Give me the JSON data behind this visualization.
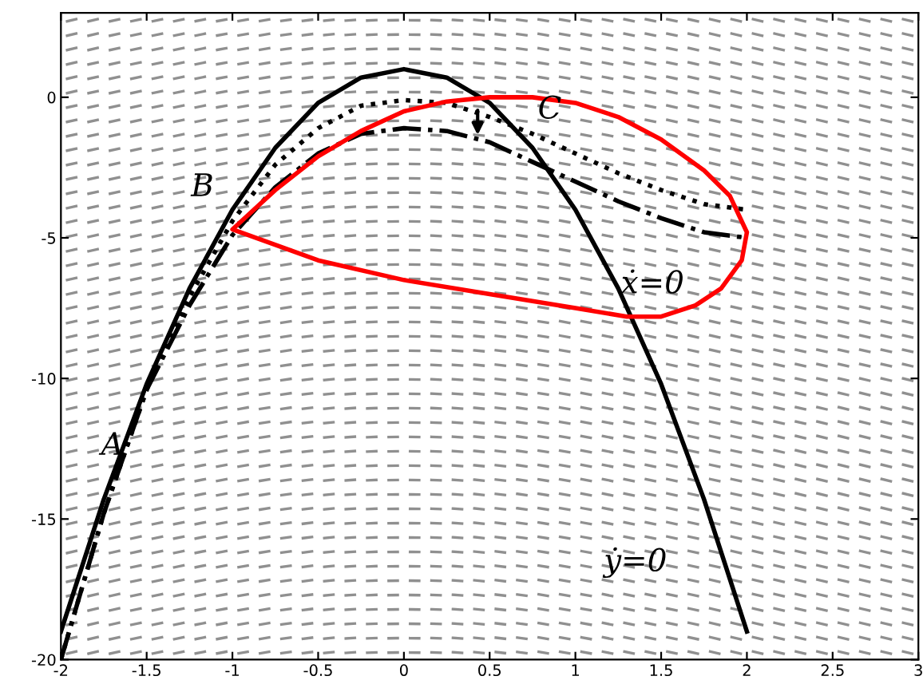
{
  "chart_data": {
    "type": "line",
    "xlim": [
      -2,
      3
    ],
    "ylim": [
      -20,
      3
    ],
    "xticks": [
      -2,
      -1.5,
      -1,
      -0.5,
      0,
      0.5,
      1,
      1.5,
      2,
      2.5,
      3
    ],
    "yticks": [
      -20,
      -15,
      -10,
      -5,
      0
    ],
    "grid": false,
    "legend": false,
    "marker": "none",
    "series": [
      {
        "color": "#000000",
        "line_style": "solid",
        "x": [
          -2,
          -1.75,
          -1.5,
          -1.25,
          -1,
          -0.75,
          -0.5,
          -0.25,
          0,
          0.25,
          0.5,
          0.75,
          1,
          1.25,
          1.5,
          1.75,
          2
        ],
        "values": [
          -19,
          -14.3,
          -10.2,
          -6.8,
          -4,
          -1.8,
          -0.2,
          0.7,
          1,
          0.7,
          -0.2,
          -1.8,
          -4,
          -6.8,
          -10.2,
          -14.3,
          -19
        ]
      },
      {
        "color": "#000000",
        "line_style": "dotted",
        "x": [
          -2,
          -1.75,
          -1.5,
          -1.25,
          -1,
          -0.75,
          -0.5,
          -0.25,
          0,
          0.25,
          0.5,
          0.75,
          1,
          1.25,
          1.5,
          1.75,
          2
        ],
        "values": [
          -20,
          -14.8,
          -10.4,
          -7.1,
          -4.4,
          -2.4,
          -1.1,
          -0.3,
          -0.1,
          -0.2,
          -0.7,
          -1.3,
          -2,
          -2.7,
          -3.3,
          -3.8,
          -4
        ]
      },
      {
        "color": "#000000",
        "line_style": "dashdot",
        "x": [
          -2,
          -1.75,
          -1.5,
          -1.25,
          -1,
          -0.75,
          -0.5,
          -0.25,
          0,
          0.25,
          0.5,
          0.75,
          1,
          1.25,
          1.5,
          1.75,
          2
        ],
        "values": [
          -20,
          -14.8,
          -10.4,
          -7.4,
          -4.9,
          -3.2,
          -2,
          -1.3,
          -1.1,
          -1.2,
          -1.6,
          -2.3,
          -3,
          -3.7,
          -4.3,
          -4.8,
          -5
        ]
      }
    ],
    "annotations": [
      "A",
      "B",
      "C",
      "ẋ=0",
      "ẏ=0"
    ]
  }
}
